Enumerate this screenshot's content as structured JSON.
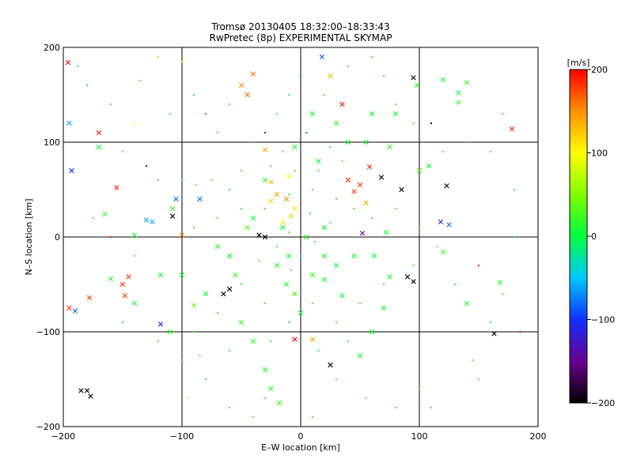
{
  "chart_data": {
    "type": "scatter",
    "title": "Tromsø 20130405 18:32:00–18:33:43",
    "subtitle": "RwPretec (8p) EXPERIMENTAL SKYMAP",
    "xlabel": "E–W location [km]",
    "ylabel": "N–S location [km]",
    "xlim": [
      -200,
      200
    ],
    "ylim": [
      -200,
      200
    ],
    "x_ticks": [
      "−200",
      "−100",
      "0",
      "100",
      "200"
    ],
    "y_ticks": [
      "−200",
      "−100",
      "0",
      "100",
      "200"
    ],
    "grid": true,
    "grid_values": [
      -100,
      0,
      100
    ],
    "colorbar": {
      "label": "[m/s]",
      "range": [
        -200,
        200
      ],
      "ticks": [
        "200",
        "100",
        "0",
        "−100",
        "−200"
      ],
      "tick_values": [
        200,
        100,
        0,
        -100,
        -200
      ],
      "colormap": [
        "#000000",
        "#6a0090",
        "#1030ff",
        "#00c8ff",
        "#00ff40",
        "#80ff00",
        "#ffff00",
        "#ff9000",
        "#ff0000"
      ]
    },
    "series": [
      {
        "marker": "x",
        "points": [
          [
            -196,
            184,
            200
          ],
          [
            -195,
            120,
            -60
          ],
          [
            -193,
            70,
            -100
          ],
          [
            -170,
            110,
            190
          ],
          [
            -155,
            52,
            190
          ],
          [
            -150,
            -50,
            180
          ],
          [
            -148,
            -62,
            180
          ],
          [
            -145,
            -42,
            180
          ],
          [
            -178,
            -64,
            180
          ],
          [
            -195,
            -75,
            180
          ],
          [
            -190,
            -78,
            -80
          ],
          [
            -170,
            95,
            10
          ],
          [
            -165,
            24,
            20
          ],
          [
            -160,
            -44,
            10
          ],
          [
            -140,
            2,
            10
          ],
          [
            -130,
            18,
            -60
          ],
          [
            -118,
            -92,
            -110
          ],
          [
            -108,
            30,
            20
          ],
          [
            -108,
            22,
            -200
          ],
          [
            -100,
            2,
            160
          ],
          [
            -90,
            -72,
            40
          ],
          [
            -125,
            16,
            -60
          ],
          [
            -105,
            40,
            -80
          ],
          [
            -85,
            40,
            -80
          ],
          [
            -60,
            -55,
            -200
          ],
          [
            -30,
            0,
            -200
          ],
          [
            -35,
            2,
            -200
          ],
          [
            -65,
            -60,
            -200
          ],
          [
            -50,
            160,
            150
          ],
          [
            -40,
            172,
            160
          ],
          [
            -45,
            150,
            160
          ],
          [
            -30,
            92,
            140
          ],
          [
            -25,
            58,
            130
          ],
          [
            -20,
            45,
            140
          ],
          [
            -12,
            40,
            150
          ],
          [
            -8,
            22,
            120
          ],
          [
            -15,
            15,
            110
          ],
          [
            -25,
            38,
            120
          ],
          [
            -10,
            64,
            100
          ],
          [
            -5,
            30,
            110
          ],
          [
            18,
            190,
            -80
          ],
          [
            35,
            140,
            190
          ],
          [
            25,
            170,
            130
          ],
          [
            40,
            60,
            180
          ],
          [
            50,
            55,
            180
          ],
          [
            58,
            74,
            190
          ],
          [
            45,
            48,
            180
          ],
          [
            55,
            36,
            140
          ],
          [
            68,
            63,
            -200
          ],
          [
            85,
            50,
            -200
          ],
          [
            95,
            168,
            -200
          ],
          [
            100,
            70,
            30
          ],
          [
            108,
            75,
            10
          ],
          [
            98,
            160,
            20
          ],
          [
            120,
            166,
            10
          ],
          [
            123,
            54,
            -200
          ],
          [
            118,
            16,
            -120
          ],
          [
            125,
            13,
            -80
          ],
          [
            133,
            142,
            20
          ],
          [
            133,
            152,
            10
          ],
          [
            140,
            163,
            20
          ],
          [
            178,
            114,
            190
          ],
          [
            168,
            -48,
            10
          ],
          [
            163,
            -102,
            -200
          ],
          [
            120,
            -16,
            20
          ],
          [
            140,
            -70,
            10
          ],
          [
            90,
            -42,
            -200
          ],
          [
            95,
            -47,
            -200
          ],
          [
            75,
            -42,
            10
          ],
          [
            52,
            4,
            -150
          ],
          [
            72,
            5,
            10
          ],
          [
            62,
            -20,
            10
          ],
          [
            45,
            -20,
            10
          ],
          [
            30,
            -30,
            10
          ],
          [
            20,
            -45,
            10
          ],
          [
            35,
            -62,
            10
          ],
          [
            70,
            -75,
            10
          ],
          [
            60,
            -100,
            10
          ],
          [
            50,
            -125,
            10
          ],
          [
            25,
            -135,
            -200
          ],
          [
            10,
            -108,
            140
          ],
          [
            -5,
            -108,
            200
          ],
          [
            -30,
            -140,
            10
          ],
          [
            -25,
            -160,
            20
          ],
          [
            -18,
            -175,
            20
          ],
          [
            -40,
            -110,
            20
          ],
          [
            -50,
            -90,
            20
          ],
          [
            -5,
            -60,
            30
          ],
          [
            0,
            -80,
            10
          ],
          [
            -12,
            -50,
            10
          ],
          [
            20,
            -20,
            10
          ],
          [
            10,
            -40,
            20
          ],
          [
            -20,
            -30,
            10
          ],
          [
            -10,
            -20,
            10
          ],
          [
            5,
            0,
            20
          ],
          [
            -15,
            10,
            10
          ],
          [
            20,
            10,
            10
          ],
          [
            -40,
            20,
            10
          ],
          [
            -30,
            60,
            20
          ],
          [
            -45,
            10,
            30
          ],
          [
            -60,
            -20,
            10
          ],
          [
            -55,
            -40,
            20
          ],
          [
            -70,
            -10,
            10
          ],
          [
            -80,
            -60,
            10
          ],
          [
            -100,
            -40,
            10
          ],
          [
            -118,
            -40,
            10
          ],
          [
            -140,
            -70,
            10
          ],
          [
            -110,
            -100,
            20
          ],
          [
            -180,
            -162,
            -200
          ],
          [
            -177,
            -168,
            -200
          ],
          [
            -185,
            -162,
            -200
          ],
          [
            40,
            100,
            10
          ],
          [
            30,
            120,
            20
          ],
          [
            15,
            80,
            10
          ],
          [
            -5,
            95,
            10
          ],
          [
            10,
            130,
            10
          ],
          [
            60,
            130,
            10
          ],
          [
            55,
            100,
            10
          ],
          [
            75,
            95,
            20
          ],
          [
            80,
            130,
            10
          ]
        ]
      },
      {
        "marker": "dot",
        "points": [
          [
            -135,
            165,
            20
          ],
          [
            -120,
            190,
            60
          ],
          [
            -100,
            185,
            100
          ],
          [
            -90,
            150,
            10
          ],
          [
            -80,
            130,
            -60
          ],
          [
            -70,
            110,
            20
          ],
          [
            -60,
            140,
            10
          ],
          [
            -110,
            130,
            20
          ],
          [
            -140,
            120,
            100
          ],
          [
            -160,
            140,
            20
          ],
          [
            -180,
            160,
            10
          ],
          [
            -188,
            180,
            20
          ],
          [
            -150,
            90,
            20
          ],
          [
            -130,
            75,
            -120
          ],
          [
            -120,
            60,
            10
          ],
          [
            -100,
            60,
            20
          ],
          [
            -88,
            55,
            30
          ],
          [
            -75,
            60,
            20
          ],
          [
            -60,
            50,
            10
          ],
          [
            -50,
            70,
            20
          ],
          [
            -175,
            20,
            10
          ],
          [
            -160,
            0,
            190
          ],
          [
            -140,
            -20,
            20
          ],
          [
            -150,
            -90,
            10
          ],
          [
            -120,
            -110,
            20
          ],
          [
            -100,
            -130,
            20
          ],
          [
            -80,
            -150,
            10
          ],
          [
            -95,
            -170,
            90
          ],
          [
            -60,
            -180,
            10
          ],
          [
            -40,
            -190,
            20
          ],
          [
            -30,
            -170,
            10
          ],
          [
            10,
            -190,
            20
          ],
          [
            30,
            -150,
            10
          ],
          [
            55,
            -170,
            20
          ],
          [
            80,
            -180,
            10
          ],
          [
            100,
            -160,
            20
          ],
          [
            110,
            -180,
            10
          ],
          [
            150,
            -150,
            20
          ],
          [
            145,
            -130,
            20
          ],
          [
            160,
            -90,
            10
          ],
          [
            170,
            -60,
            20
          ],
          [
            185,
            -100,
            200
          ],
          [
            150,
            -30,
            190
          ],
          [
            180,
            0,
            10
          ],
          [
            180,
            50,
            20
          ],
          [
            160,
            90,
            20
          ],
          [
            170,
            130,
            10
          ],
          [
            140,
            100,
            20
          ],
          [
            110,
            120,
            -200
          ],
          [
            120,
            90,
            20
          ],
          [
            95,
            120,
            10
          ],
          [
            80,
            140,
            20
          ],
          [
            70,
            170,
            10
          ],
          [
            60,
            190,
            20
          ],
          [
            40,
            180,
            10
          ],
          [
            20,
            150,
            20
          ],
          [
            0,
            170,
            -80
          ],
          [
            -10,
            150,
            10
          ],
          [
            -20,
            130,
            20
          ],
          [
            -30,
            110,
            -120
          ],
          [
            -40,
            100,
            20
          ],
          [
            -15,
            90,
            20
          ],
          [
            25,
            95,
            10
          ],
          [
            5,
            110,
            -80
          ],
          [
            15,
            70,
            20
          ],
          [
            -5,
            70,
            20
          ],
          [
            -25,
            75,
            10
          ],
          [
            35,
            80,
            20
          ],
          [
            45,
            30,
            10
          ],
          [
            30,
            40,
            20
          ],
          [
            10,
            50,
            20
          ],
          [
            -10,
            45,
            10
          ],
          [
            -30,
            30,
            20
          ],
          [
            -50,
            30,
            10
          ],
          [
            -70,
            20,
            20
          ],
          [
            -90,
            10,
            10
          ],
          [
            60,
            20,
            10
          ],
          [
            80,
            30,
            20
          ],
          [
            100,
            10,
            10
          ],
          [
            115,
            -10,
            20
          ],
          [
            130,
            -50,
            10
          ],
          [
            95,
            -30,
            20
          ],
          [
            70,
            -50,
            10
          ],
          [
            50,
            -70,
            20
          ],
          [
            30,
            -90,
            10
          ],
          [
            10,
            -70,
            20
          ],
          [
            -10,
            -90,
            10
          ],
          [
            -30,
            -70,
            20
          ],
          [
            -50,
            -50,
            10
          ],
          [
            -70,
            -80,
            20
          ],
          [
            -90,
            -100,
            10
          ],
          [
            -25,
            -110,
            20
          ],
          [
            15,
            -120,
            10
          ],
          [
            40,
            -110,
            20
          ],
          [
            -60,
            -120,
            10
          ],
          [
            -85,
            -125,
            20
          ],
          [
            0,
            -20,
            10
          ],
          [
            -10,
            5,
            20
          ],
          [
            12,
            -5,
            10
          ],
          [
            -20,
            -10,
            20
          ],
          [
            25,
            15,
            10
          ],
          [
            -35,
            -25,
            20
          ],
          [
            8,
            25,
            10
          ],
          [
            -8,
            -35,
            20
          ]
        ]
      }
    ]
  }
}
